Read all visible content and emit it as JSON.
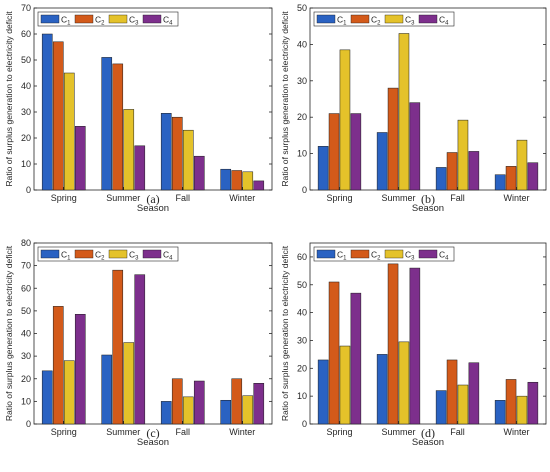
{
  "colors": {
    "C1": "#2a62c2",
    "C2": "#d35a1a",
    "C3": "#e4c22a",
    "C4": "#7d2f8c"
  },
  "chart_data": [
    {
      "type": "bar",
      "panel": "(a)",
      "categories": [
        "Spring",
        "Summer",
        "Fall",
        "Winter"
      ],
      "series": [
        {
          "name": "C1",
          "values": [
            60,
            51,
            29.5,
            8
          ]
        },
        {
          "name": "C2",
          "values": [
            57,
            48.5,
            28,
            7.5
          ]
        },
        {
          "name": "C3",
          "values": [
            45,
            31,
            23,
            7
          ]
        },
        {
          "name": "C4",
          "values": [
            24.5,
            17,
            13,
            3.5
          ]
        }
      ],
      "xlabel": "Season",
      "ylabel": "Ratio of surplus generation to electricity deficit",
      "ylim": [
        0,
        70
      ],
      "yticks": [
        0,
        10,
        20,
        30,
        40,
        50,
        60,
        70
      ],
      "legend": "top-left, horizontal",
      "grid": false
    },
    {
      "type": "bar",
      "panel": "(b)",
      "categories": [
        "Spring",
        "Summer",
        "Fall",
        "Winter"
      ],
      "series": [
        {
          "name": "C1",
          "values": [
            12,
            15.8,
            6.2,
            4.2
          ]
        },
        {
          "name": "C2",
          "values": [
            21,
            28,
            10.3,
            6.5
          ]
        },
        {
          "name": "C3",
          "values": [
            38.5,
            43,
            19.2,
            13.7
          ]
        },
        {
          "name": "C4",
          "values": [
            21,
            24,
            10.6,
            7.5
          ]
        }
      ],
      "xlabel": "Season",
      "ylabel": "Ratio of surplus generation to electricity deficit",
      "ylim": [
        0,
        50
      ],
      "yticks": [
        0,
        10,
        20,
        30,
        40,
        50
      ],
      "legend": "top-left, horizontal",
      "grid": false
    },
    {
      "type": "bar",
      "panel": "(c)",
      "categories": [
        "Spring",
        "Summer",
        "Fall",
        "Winter"
      ],
      "series": [
        {
          "name": "C1",
          "values": [
            23.5,
            30.5,
            10,
            10.5
          ]
        },
        {
          "name": "C2",
          "values": [
            52,
            68,
            20,
            20
          ]
        },
        {
          "name": "C3",
          "values": [
            28,
            36,
            12,
            12.5
          ]
        },
        {
          "name": "C4",
          "values": [
            48.5,
            66,
            19,
            18
          ]
        }
      ],
      "xlabel": "Season",
      "ylabel": "Ratio of surplus generation to electricity deficit",
      "ylim": [
        0,
        80
      ],
      "yticks": [
        0,
        10,
        20,
        30,
        40,
        50,
        60,
        70,
        80
      ],
      "legend": "top-left, horizontal",
      "grid": false
    },
    {
      "type": "bar",
      "panel": "(d)",
      "categories": [
        "Spring",
        "Summer",
        "Fall",
        "Winter"
      ],
      "series": [
        {
          "name": "C1",
          "values": [
            23,
            25,
            12,
            8.5
          ]
        },
        {
          "name": "C2",
          "values": [
            51,
            57.5,
            23,
            16
          ]
        },
        {
          "name": "C3",
          "values": [
            28,
            29.5,
            14,
            10
          ]
        },
        {
          "name": "C4",
          "values": [
            47,
            56,
            22,
            15
          ]
        }
      ],
      "xlabel": "Season",
      "ylabel": "Ratio of surplus generation to electricity deficit",
      "ylim": [
        0,
        65
      ],
      "yticks": [
        0,
        10,
        20,
        30,
        40,
        50,
        60
      ],
      "legend": "top-left, horizontal",
      "grid": false
    }
  ]
}
